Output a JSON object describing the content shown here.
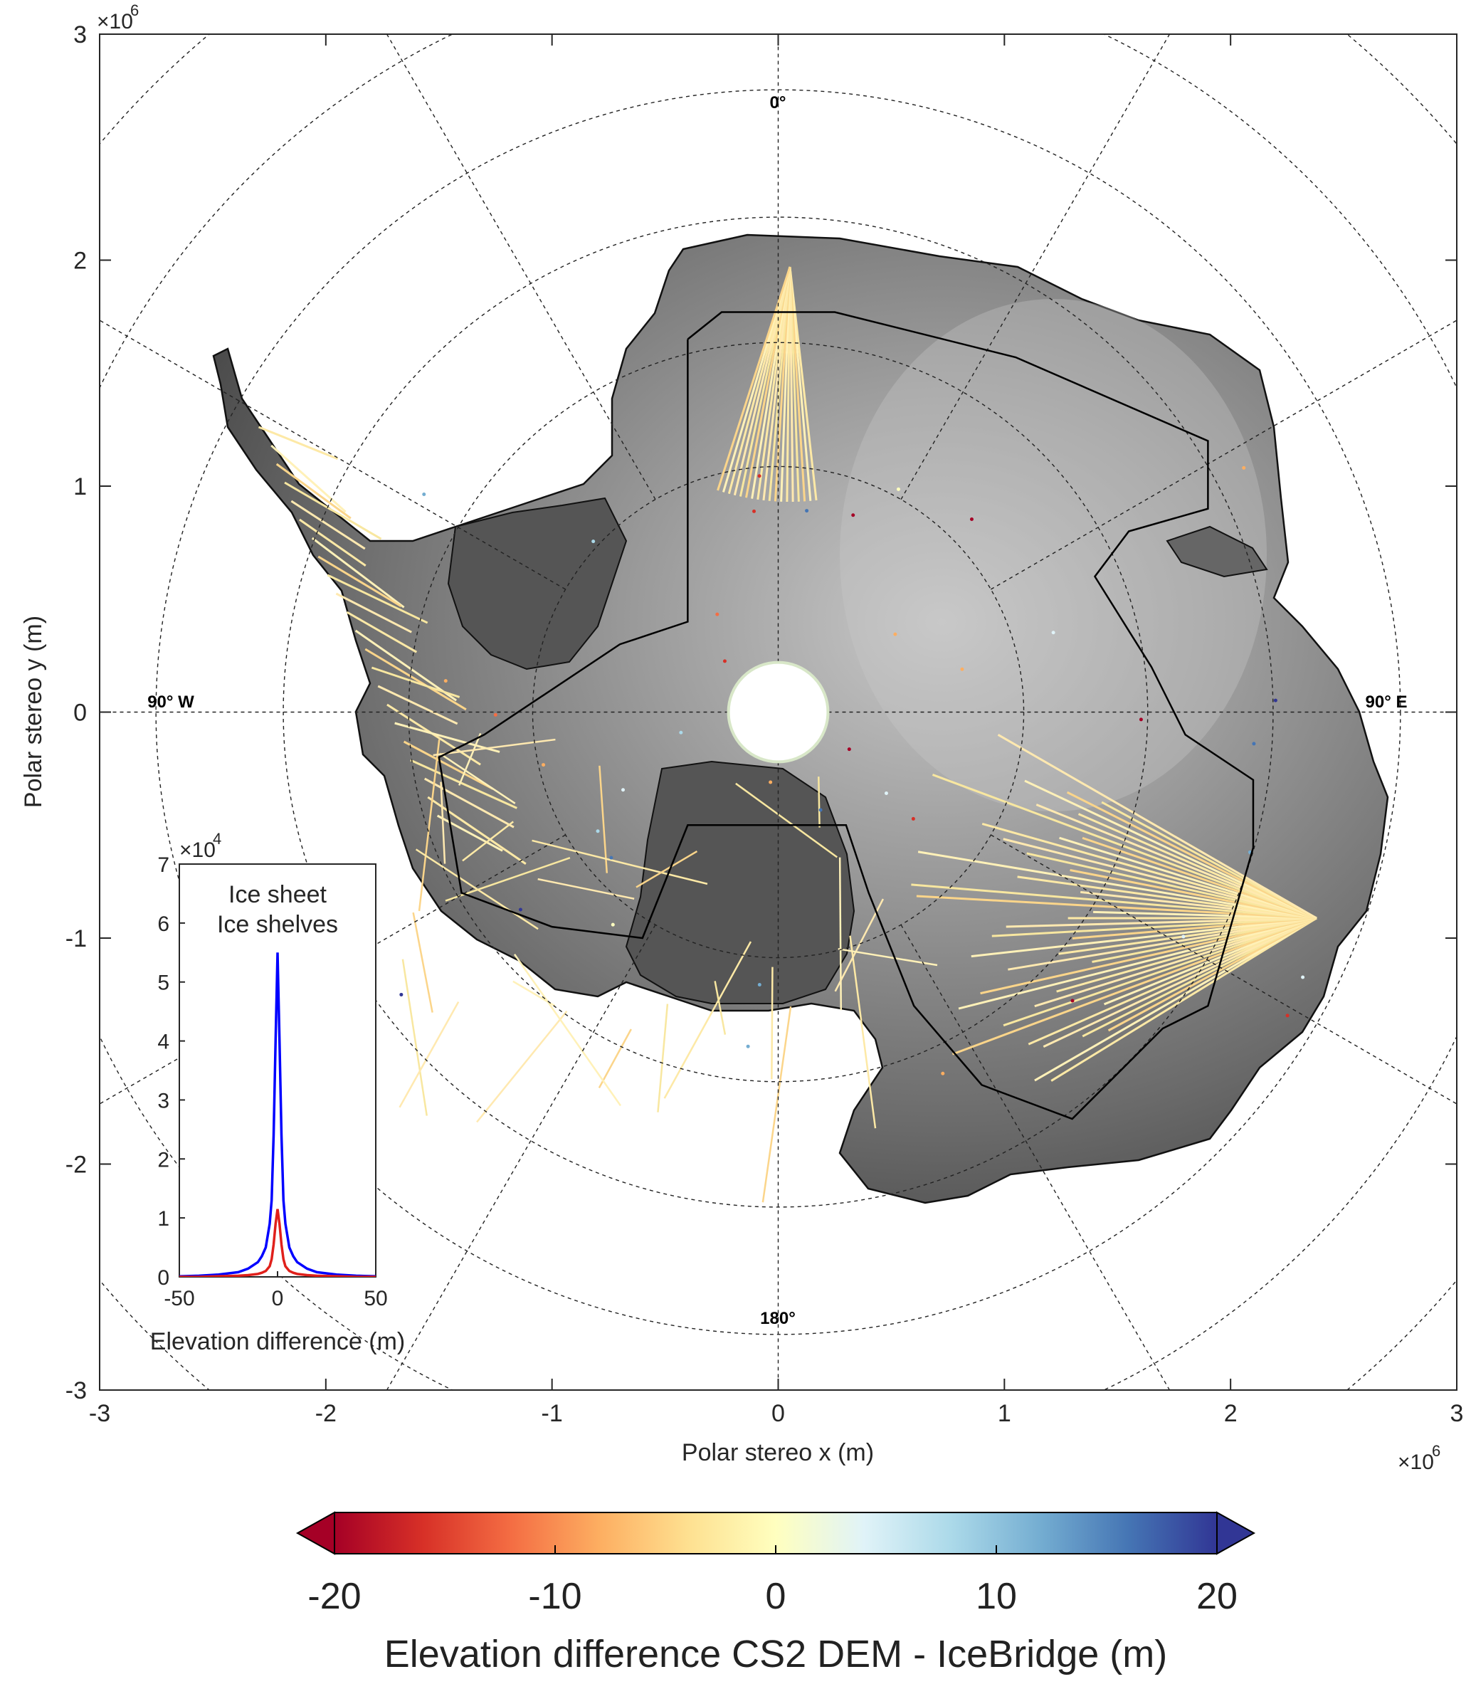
{
  "chart_data": [
    {
      "type": "scatter",
      "title": "",
      "xlabel": "Polar stereo x (m)",
      "ylabel": "Polar stereo y (m)",
      "x_exponent_base": "×10",
      "x_exponent_power": "6",
      "y_exponent_base": "×10",
      "y_exponent_power": "6",
      "xlim": [
        -3000000,
        3000000
      ],
      "ylim": [
        -3000000,
        3000000
      ],
      "xticks": [
        -3,
        -2,
        -1,
        0,
        1,
        2,
        3
      ],
      "yticks": [
        3,
        2,
        1,
        0,
        -1,
        -2,
        -3
      ],
      "grid_labels": {
        "top": "0°",
        "bottom": "180°",
        "left": "90° W",
        "right": "90° E"
      },
      "graticule_circles_lat": [
        -50,
        -55,
        -60,
        -65,
        -70,
        -75,
        -80
      ],
      "graticule_meridians_deg": [
        0,
        30,
        60,
        90,
        120,
        150,
        180,
        210,
        240,
        270,
        300,
        330
      ],
      "background": "Antarctica shaded-relief elevation (CS2 DEM), grayscale",
      "overlay": "IceBridge flight-line elevation differences colored by value",
      "polar_hole_radius_m": 220000,
      "polygons": [
        {
          "name": "",
          "points": [
            [
              -400000,
              1650000
            ],
            [
              -250000,
              1770000
            ],
            [
              250000,
              1770000
            ],
            [
              1050000,
              1570000
            ],
            [
              1900000,
              1200000
            ],
            [
              1900000,
              900000
            ],
            [
              1550000,
              800000
            ],
            [
              1400000,
              600000
            ],
            [
              1650000,
              200000
            ],
            [
              1700000,
              100000
            ],
            [
              1800000,
              -100000
            ],
            [
              2100000,
              -300000
            ],
            [
              2100000,
              -600000
            ],
            [
              1900000,
              -1300000
            ],
            [
              1700000,
              -1400000
            ],
            [
              1300000,
              -1800000
            ],
            [
              900000,
              -1650000
            ],
            [
              600000,
              -1300000
            ],
            [
              400000,
              -800000
            ],
            [
              300000,
              -500000
            ],
            [
              -400000,
              -500000
            ],
            [
              -600000,
              -1000000
            ],
            [
              -1000000,
              -950000
            ],
            [
              -1400000,
              -800000
            ],
            [
              -1500000,
              -200000
            ],
            [
              -1300000,
              -100000
            ],
            [
              -700000,
              300000
            ],
            [
              -400000,
              400000
            ],
            [
              -400000,
              1650000
            ]
          ]
        }
      ],
      "colorbar": {
        "label": "Elevation difference CS2 DEM - IceBridge (m)",
        "range": [
          -20,
          20
        ],
        "ticks": [
          -20,
          -10,
          0,
          10,
          20
        ],
        "colors": [
          "#a50026",
          "#d73027",
          "#f46d43",
          "#fdae61",
          "#fee090",
          "#ffffbf",
          "#e0f3f8",
          "#abd9e9",
          "#74add1",
          "#4575b4",
          "#313695"
        ]
      }
    },
    {
      "type": "line",
      "title": "",
      "xlabel": "Elevation difference (m)",
      "ylabel": "",
      "y_exponent_base": "×10",
      "y_exponent_power": "4",
      "xlim": [
        -50,
        50
      ],
      "ylim": [
        0,
        7
      ],
      "xticks": [
        -50,
        0,
        50
      ],
      "yticks": [
        0,
        1,
        2,
        3,
        4,
        5,
        6,
        7
      ],
      "legend_position": "top",
      "series": [
        {
          "name": "Ice sheet",
          "color": "#0000ff",
          "x": [
            -50,
            -40,
            -30,
            -20,
            -15,
            -10,
            -8,
            -6,
            -4,
            -3,
            -2,
            -1,
            0,
            1,
            2,
            3,
            4,
            6,
            8,
            10,
            15,
            20,
            30,
            40,
            50
          ],
          "values": [
            0.01,
            0.02,
            0.04,
            0.08,
            0.14,
            0.25,
            0.35,
            0.5,
            0.9,
            1.3,
            2.4,
            4.0,
            5.5,
            4.0,
            2.4,
            1.3,
            0.9,
            0.5,
            0.35,
            0.25,
            0.14,
            0.08,
            0.04,
            0.02,
            0.01
          ]
        },
        {
          "name": "Ice shelves",
          "color": "#e0201b",
          "x": [
            -50,
            -40,
            -30,
            -20,
            -15,
            -10,
            -8,
            -6,
            -4,
            -3,
            -2,
            -1,
            0,
            1,
            2,
            3,
            4,
            6,
            8,
            10,
            15,
            20,
            30,
            40,
            50
          ],
          "values": [
            0.0,
            0.0,
            0.01,
            0.02,
            0.03,
            0.05,
            0.07,
            0.1,
            0.18,
            0.3,
            0.55,
            0.9,
            1.15,
            0.9,
            0.55,
            0.3,
            0.18,
            0.1,
            0.07,
            0.05,
            0.03,
            0.02,
            0.01,
            0.0,
            0.0
          ]
        }
      ]
    }
  ]
}
